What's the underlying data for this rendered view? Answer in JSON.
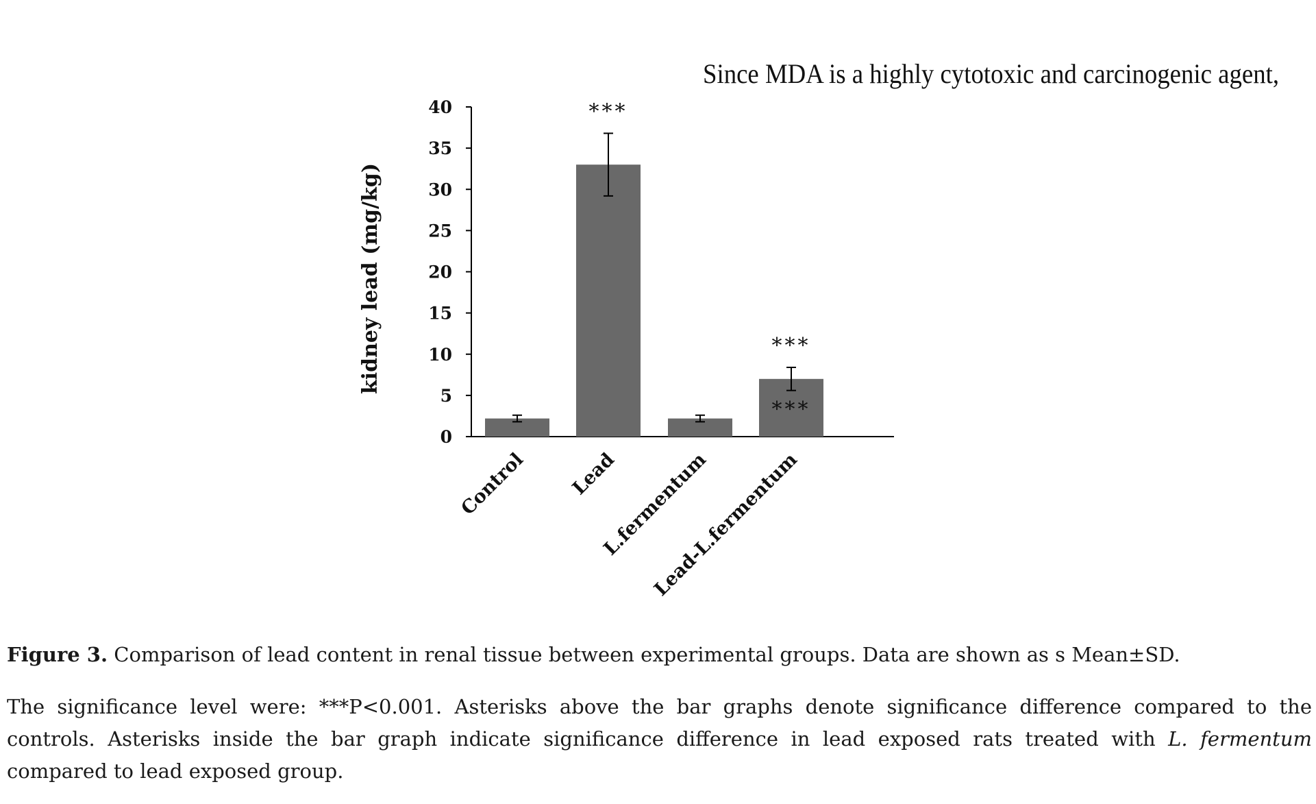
{
  "header_text": "Since MDA is a highly cytotoxic and carcinogenic agent,",
  "chart_data": {
    "type": "bar",
    "categories": [
      "Control",
      "Lead",
      "L.fermentum",
      "Lead-L.fermentum"
    ],
    "values": [
      2.2,
      33.0,
      2.2,
      7.0
    ],
    "errors": [
      0.4,
      3.8,
      0.4,
      1.4
    ],
    "ylabel": "kidney lead (mg/kg)",
    "xlabel": "",
    "ylim": [
      0,
      40
    ],
    "yticks": [
      0,
      5,
      10,
      15,
      20,
      25,
      30,
      35,
      40
    ],
    "bar_color": "#696969",
    "grid": false,
    "annotations": [
      {
        "category": "Lead",
        "position": "above",
        "text": "***"
      },
      {
        "category": "Lead-L.fermentum",
        "position": "above",
        "text": "***"
      },
      {
        "category": "Lead-L.fermentum",
        "position": "inside",
        "text": "***"
      }
    ]
  },
  "caption": {
    "label": "Figure 3.",
    "line1": "Comparison of lead content in renal tissue between experimental groups. Data are shown as s Mean±SD.",
    "body_part1": "The significance level were: ***P<0.001. Asterisks above the bar graphs denote significance difference compared to the controls. Asterisks inside the bar graph indicate significance difference in lead exposed rats treated with",
    "species": "L. fermentum",
    "body_part2": "compared to lead exposed group."
  }
}
